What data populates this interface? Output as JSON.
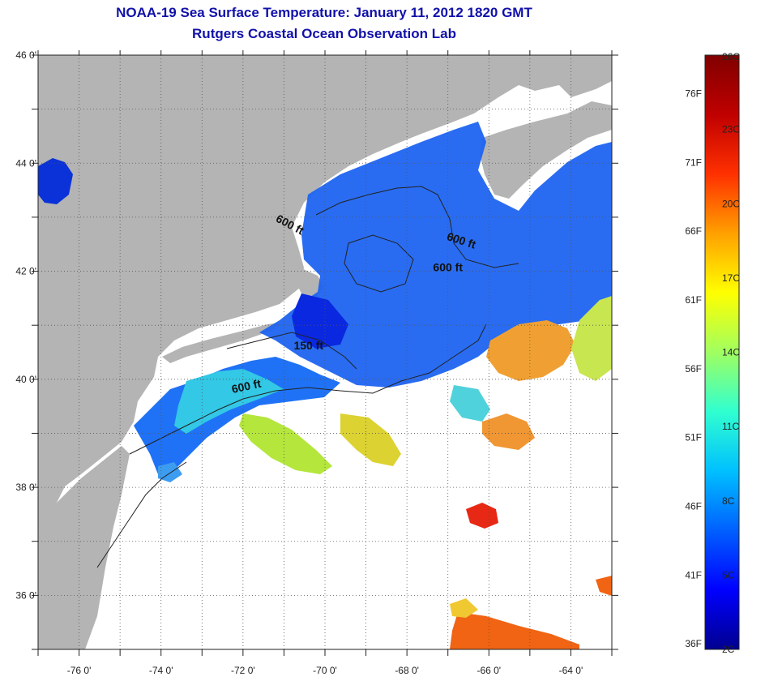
{
  "header": {
    "title": "NOAA-19 Sea Surface Temperature:  January 11, 2012 1820 GMT",
    "subtitle": "Rutgers Coastal Ocean Observation Lab"
  },
  "map": {
    "lon_range": [
      -77,
      -63
    ],
    "lat_range": [
      35,
      46
    ],
    "x_ticks": [
      {
        "value": -76,
        "label": "-76 0'"
      },
      {
        "value": -74,
        "label": "-74 0'"
      },
      {
        "value": -72,
        "label": "-72 0'"
      },
      {
        "value": -70,
        "label": "-70 0'"
      },
      {
        "value": -68,
        "label": "-68 0'"
      },
      {
        "value": -66,
        "label": "-66 0'"
      },
      {
        "value": -64,
        "label": "-64 0'"
      }
    ],
    "y_ticks": [
      {
        "value": 46,
        "label": "46 0'"
      },
      {
        "value": 44,
        "label": "44 0'"
      },
      {
        "value": 42,
        "label": "42 0'"
      },
      {
        "value": 40,
        "label": "40 0'"
      },
      {
        "value": 38,
        "label": "38 0'"
      },
      {
        "value": 36,
        "label": "36 0'"
      }
    ],
    "grid": true,
    "land_color": "#b4b4b4",
    "cloud_color": "#ffffff",
    "contour_labels": [
      {
        "text": "600 ft",
        "lon": -70.9,
        "lat": 42.8,
        "angle": 28
      },
      {
        "text": "600 ft",
        "lon": -66.7,
        "lat": 42.5,
        "angle": 18
      },
      {
        "text": "600 ft",
        "lon": -67.0,
        "lat": 42.0,
        "angle": 0
      },
      {
        "text": "150 ft",
        "lon": -70.4,
        "lat": 40.55,
        "angle": 0
      },
      {
        "text": "600 ft",
        "lon": -71.9,
        "lat": 39.8,
        "angle": -12
      }
    ]
  },
  "colorbar": {
    "min_c": 2,
    "max_c": 26,
    "fahrenheit_labels": [
      {
        "value": 36,
        "label": "36F"
      },
      {
        "value": 41,
        "label": "41F"
      },
      {
        "value": 46,
        "label": "46F"
      },
      {
        "value": 51,
        "label": "51F"
      },
      {
        "value": 56,
        "label": "56F"
      },
      {
        "value": 61,
        "label": "61F"
      },
      {
        "value": 66,
        "label": "66F"
      },
      {
        "value": 71,
        "label": "71F"
      },
      {
        "value": 76,
        "label": "76F"
      }
    ],
    "celsius_labels": [
      {
        "value": 2,
        "label": "2C"
      },
      {
        "value": 5,
        "label": "5C"
      },
      {
        "value": 8,
        "label": "8C"
      },
      {
        "value": 11,
        "label": "11C"
      },
      {
        "value": 14,
        "label": "14C"
      },
      {
        "value": 17,
        "label": "17C"
      },
      {
        "value": 20,
        "label": "20C"
      },
      {
        "value": 23,
        "label": "23C"
      },
      {
        "value": 26,
        "label": "26C"
      }
    ],
    "colors": [
      "#00008f",
      "#0000ff",
      "#0060ff",
      "#00c0ff",
      "#30ffd0",
      "#a0ff60",
      "#ffff00",
      "#ffa000",
      "#ff3000",
      "#c00000",
      "#800000"
    ]
  }
}
